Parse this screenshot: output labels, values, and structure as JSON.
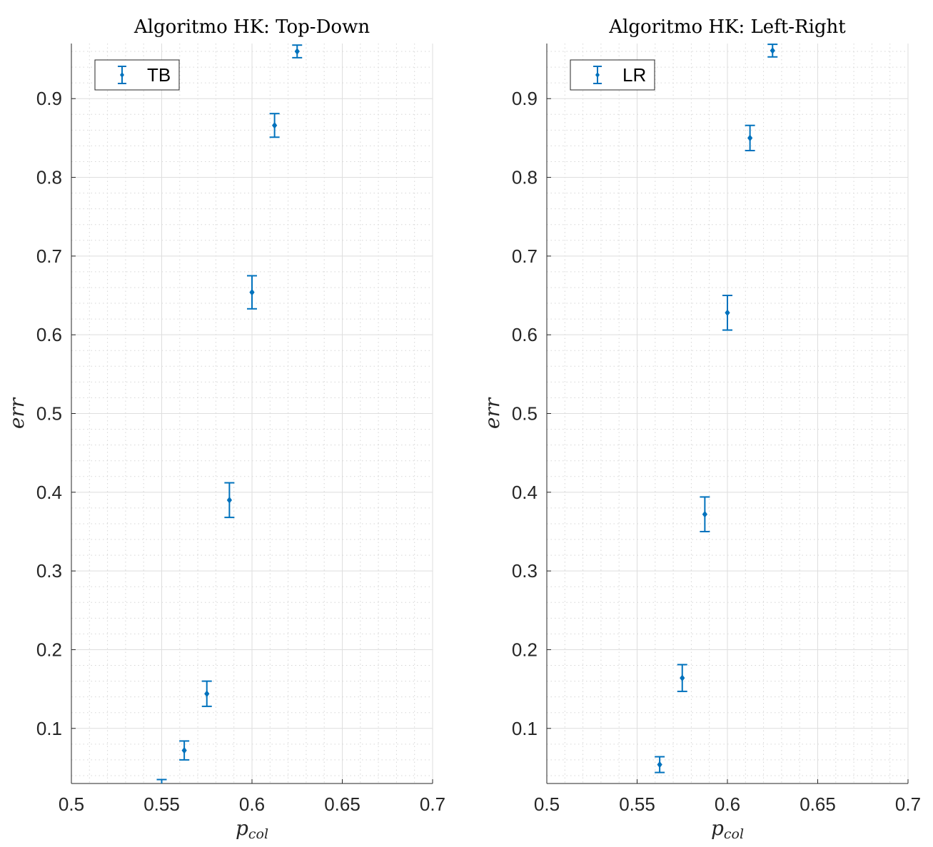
{
  "chart_data": [
    {
      "type": "scatter",
      "title": "Algoritmo HK: Top-Down",
      "xlabel": "p",
      "xlabel_sub": "col",
      "ylabel": "err",
      "xlim": [
        0.5,
        0.7
      ],
      "ylim": [
        0.03,
        0.97
      ],
      "xticks": [
        0.5,
        0.55,
        0.6,
        0.65,
        0.7
      ],
      "xtick_labels": [
        "0.5",
        "0.55",
        "0.6",
        "0.65",
        "0.7"
      ],
      "yticks": [
        0.1,
        0.2,
        0.3,
        0.4,
        0.5,
        0.6,
        0.7,
        0.8,
        0.9
      ],
      "ytick_labels": [
        "0.1",
        "0.2",
        "0.3",
        "0.4",
        "0.5",
        "0.6",
        "0.7",
        "0.8",
        "0.9"
      ],
      "grid": true,
      "minor_grid": true,
      "legend": "top-left",
      "series": [
        {
          "name": "TB",
          "color": "#0072BD",
          "x": [
            0.55,
            0.5625,
            0.575,
            0.5875,
            0.6,
            0.6125,
            0.625
          ],
          "y": [
            0.025,
            0.072,
            0.144,
            0.39,
            0.654,
            0.866,
            0.96
          ],
          "err": [
            0.01,
            0.012,
            0.016,
            0.022,
            0.021,
            0.015,
            0.008
          ]
        }
      ]
    },
    {
      "type": "scatter",
      "title": "Algoritmo HK: Left-Right",
      "xlabel": "p",
      "xlabel_sub": "col",
      "ylabel": "err",
      "xlim": [
        0.5,
        0.7
      ],
      "ylim": [
        0.03,
        0.97
      ],
      "xticks": [
        0.5,
        0.55,
        0.6,
        0.65,
        0.7
      ],
      "xtick_labels": [
        "0.5",
        "0.55",
        "0.6",
        "0.65",
        "0.7"
      ],
      "yticks": [
        0.1,
        0.2,
        0.3,
        0.4,
        0.5,
        0.6,
        0.7,
        0.8,
        0.9
      ],
      "ytick_labels": [
        "0.1",
        "0.2",
        "0.3",
        "0.4",
        "0.5",
        "0.6",
        "0.7",
        "0.8",
        "0.9"
      ],
      "grid": true,
      "minor_grid": true,
      "legend": "top-left",
      "series": [
        {
          "name": "LR",
          "color": "#0072BD",
          "x": [
            0.5625,
            0.575,
            0.5875,
            0.6,
            0.6125,
            0.625
          ],
          "y": [
            0.054,
            0.164,
            0.372,
            0.628,
            0.85,
            0.961
          ],
          "err": [
            0.01,
            0.017,
            0.022,
            0.022,
            0.016,
            0.008
          ]
        }
      ]
    }
  ]
}
